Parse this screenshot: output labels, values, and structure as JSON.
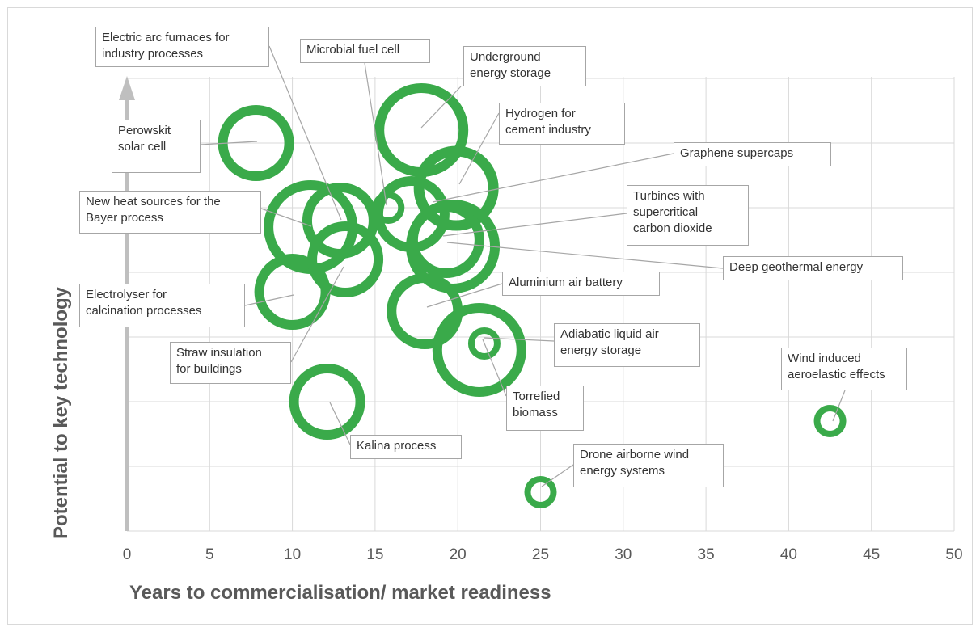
{
  "chart_data": {
    "type": "bubble",
    "xlabel": "Years to commercialisation/ market readiness",
    "ylabel": "Potential to key technology",
    "xlim": [
      0,
      50
    ],
    "xticks": [
      "0",
      "5",
      "10",
      "15",
      "20",
      "25",
      "30",
      "35",
      "40",
      "45",
      "50"
    ],
    "grid": true,
    "bubble_color": "#3aaa4a",
    "points": [
      {
        "name": "Perowskit\nsolar cell",
        "x": 7.8,
        "y": 6.0,
        "size": "medium"
      },
      {
        "name": "Electric arc furnaces for\nindustry processes",
        "x": 12.9,
        "y": 4.8,
        "size": "medium"
      },
      {
        "name": "Microbial fuel cell",
        "x": 15.8,
        "y": 5.0,
        "size": "small"
      },
      {
        "name": "Underground\nenergy storage",
        "x": 17.8,
        "y": 6.2,
        "size": "large"
      },
      {
        "name": "Hydrogen for\ncement industry",
        "x": 19.9,
        "y": 5.3,
        "size": "medium-large"
      },
      {
        "name": "Graphene supercaps",
        "x": 17.2,
        "y": 4.9,
        "size": "medium"
      },
      {
        "name": "New heat sources for the\nBayer process",
        "x": 11.1,
        "y": 4.7,
        "size": "large"
      },
      {
        "name": "Turbines with\nsupercritical\ncarbon dioxide",
        "x": 19.3,
        "y": 4.5,
        "size": "medium"
      },
      {
        "name": "Deep geothermal energy",
        "x": 19.7,
        "y": 4.4,
        "size": "large"
      },
      {
        "name": "Electrolyser for\ncalcination processes",
        "x": 10.0,
        "y": 3.7,
        "size": "medium"
      },
      {
        "name": "Straw insulation\nfor buildings",
        "x": 13.2,
        "y": 4.2,
        "size": "medium"
      },
      {
        "name": "Aluminium air battery",
        "x": 18.0,
        "y": 3.4,
        "size": "medium"
      },
      {
        "name": "Adiabatic liquid air\nenergy storage",
        "x": 21.6,
        "y": 2.9,
        "size": "small"
      },
      {
        "name": "Torrefied\nbiomass",
        "x": 21.3,
        "y": 2.8,
        "size": "large"
      },
      {
        "name": "Kalina process",
        "x": 12.1,
        "y": 2.0,
        "size": "medium"
      },
      {
        "name": "Drone airborne wind\nenergy systems",
        "x": 25.0,
        "y": 0.6,
        "size": "small"
      },
      {
        "name": "Wind induced\naeroelastic effects",
        "x": 42.5,
        "y": 1.7,
        "size": "small"
      }
    ]
  }
}
